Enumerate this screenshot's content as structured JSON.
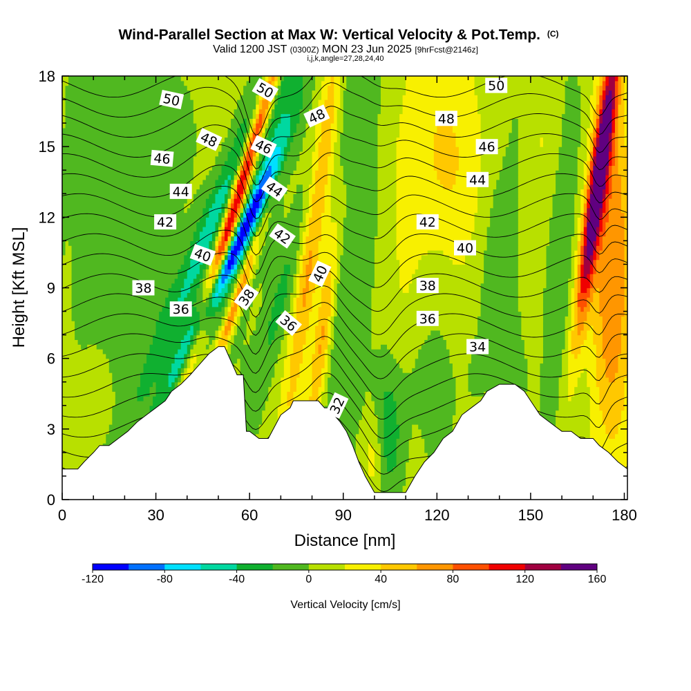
{
  "chart_data": {
    "type": "heatmap",
    "title": "Wind-Parallel Section at Max W: Vertical Velocity & Pot.Temp.",
    "title_mark": "(C)",
    "subtitle_prefix": "Valid 1200 JST",
    "subtitle_utc": "(0300Z)",
    "subtitle_date": "MON 23 Jun 2025",
    "subtitle_fcst": "[9hrFcst@2146z]",
    "subtitle2": "i,j,k,angle=27,28,24,40",
    "xlabel": "Distance [nm]",
    "ylabel": "Height [Kft MSL]",
    "xlim": [
      0,
      181
    ],
    "ylim": [
      0,
      18
    ],
    "x_ticks": [
      "0",
      "30",
      "60",
      "90",
      "120",
      "150",
      "180"
    ],
    "x_tick_values": [
      0,
      30,
      60,
      90,
      120,
      150,
      180
    ],
    "y_ticks": [
      "0",
      "3",
      "6",
      "9",
      "12",
      "15",
      "18"
    ],
    "y_tick_values": [
      0,
      3,
      6,
      9,
      12,
      15,
      18
    ],
    "colorbar": {
      "label": "Vertical Velocity [cm/s]",
      "ticks": [
        "-120",
        "-80",
        "-40",
        "0",
        "40",
        "80",
        "120",
        "160"
      ],
      "tick_values": [
        -120,
        -80,
        -40,
        0,
        40,
        80,
        120,
        160
      ],
      "levels": [
        -120,
        -100,
        -80,
        -60,
        -40,
        -20,
        0,
        20,
        40,
        60,
        80,
        100,
        120,
        140,
        160
      ],
      "colors": [
        "#0000ff",
        "#0070ff",
        "#00e0ff",
        "#00d8a0",
        "#10b030",
        "#50b820",
        "#b8e000",
        "#f8f000",
        "#ffc800",
        "#ff9600",
        "#ff5000",
        "#f00000",
        "#a00040",
        "#600080"
      ]
    },
    "terrain": {
      "x": [
        0,
        5,
        7,
        10,
        12,
        15,
        18,
        21,
        24,
        27,
        30,
        33,
        35,
        38,
        41,
        43,
        45,
        47,
        50,
        52,
        53,
        55,
        56,
        58,
        59,
        60,
        63,
        65,
        66,
        70,
        73,
        74,
        77,
        80,
        82,
        84,
        86,
        87,
        89,
        91,
        93,
        95,
        97,
        100,
        104,
        108,
        110,
        113,
        116,
        119,
        122,
        125,
        128,
        131,
        134,
        136,
        140,
        143,
        145,
        148,
        150,
        153,
        156,
        160,
        163,
        166,
        170,
        172,
        175,
        178,
        181
      ],
      "y": [
        1.3,
        1.3,
        1.6,
        2.0,
        2.3,
        2.3,
        2.6,
        2.9,
        3.3,
        3.6,
        3.9,
        4.2,
        4.6,
        4.9,
        5.3,
        5.6,
        5.9,
        6.2,
        6.5,
        6.5,
        6.2,
        5.6,
        5.3,
        5.3,
        2.9,
        2.9,
        2.6,
        2.6,
        2.6,
        3.6,
        3.9,
        4.2,
        4.2,
        4.2,
        4.2,
        3.9,
        3.9,
        3.6,
        3.3,
        2.9,
        2.3,
        1.6,
        1.0,
        0.3,
        0.3,
        0.3,
        0.3,
        1.0,
        1.6,
        2.0,
        2.6,
        2.9,
        3.6,
        3.9,
        4.2,
        4.6,
        4.9,
        4.9,
        4.9,
        4.6,
        4.2,
        3.6,
        3.3,
        2.9,
        2.9,
        2.6,
        2.6,
        2.3,
        2.0,
        1.6,
        1.3
      ]
    },
    "w_features": [
      {
        "x": 51,
        "y": 9.5,
        "sx": 2.2,
        "sy": 3.2,
        "amp": -115,
        "tilt": 3.5
      },
      {
        "x": 49,
        "y": 12.0,
        "sx": 3.5,
        "sy": 4.5,
        "amp": -55,
        "tilt": 3.0
      },
      {
        "x": 56.5,
        "y": 13.0,
        "sx": 1.8,
        "sy": 5.0,
        "amp": 140,
        "tilt": 2.2
      },
      {
        "x": 56,
        "y": 8.5,
        "sx": 1.5,
        "sy": 2.5,
        "amp": 90,
        "tilt": 2.5
      },
      {
        "x": 66,
        "y": 14.0,
        "sx": 3.5,
        "sy": 5.0,
        "amp": -48,
        "tilt": 2.0
      },
      {
        "x": 70,
        "y": 8.5,
        "sx": 3.0,
        "sy": 4.0,
        "amp": -30,
        "tilt": 2.0
      },
      {
        "x": 80,
        "y": 11.0,
        "sx": 2.5,
        "sy": 7.0,
        "amp": 60,
        "tilt": 1.0
      },
      {
        "x": 84,
        "y": 7.5,
        "sx": 2.0,
        "sy": 4.0,
        "amp": 60,
        "tilt": 1.0
      },
      {
        "x": 90,
        "y": 12.0,
        "sx": 2.5,
        "sy": 8.0,
        "amp": -25,
        "tilt": 0.5
      },
      {
        "x": 97,
        "y": 12.0,
        "sx": 2.5,
        "sy": 7.0,
        "amp": -22,
        "tilt": 0.5
      },
      {
        "x": 104,
        "y": 3.0,
        "sx": 3.5,
        "sy": 2.0,
        "amp": -45,
        "tilt": 0.0
      },
      {
        "x": 100,
        "y": 2.0,
        "sx": 2.5,
        "sy": 1.5,
        "amp": 35,
        "tilt": 0.0
      },
      {
        "x": 125,
        "y": 14.5,
        "sx": 12.0,
        "sy": 3.5,
        "amp": 38,
        "tilt": 0.0
      },
      {
        "x": 140,
        "y": 12.0,
        "sx": 6.0,
        "sy": 5.0,
        "amp": -25,
        "tilt": 0.0
      },
      {
        "x": 111,
        "y": 13.0,
        "sx": 2.5,
        "sy": 5.0,
        "amp": 15,
        "tilt": 0.5
      },
      {
        "x": 20,
        "y": 10.0,
        "sx": 12.0,
        "sy": 8.0,
        "amp": -22,
        "tilt": 0.0
      },
      {
        "x": 12,
        "y": 4.5,
        "sx": 9.0,
        "sy": 2.5,
        "amp": 12,
        "tilt": 0.0
      },
      {
        "x": 171.5,
        "y": 13.5,
        "sx": 2.0,
        "sy": 4.5,
        "amp": 145,
        "tilt": 1.0
      },
      {
        "x": 176,
        "y": 10.0,
        "sx": 5.0,
        "sy": 6.0,
        "amp": 75,
        "tilt": 0.0
      },
      {
        "x": 160,
        "y": 10.0,
        "sx": 3.0,
        "sy": 6.0,
        "amp": -20,
        "tilt": 0.5
      },
      {
        "x": 152,
        "y": 14.0,
        "sx": 3.0,
        "sy": 4.0,
        "amp": 15,
        "tilt": 0.5
      },
      {
        "x": 120,
        "y": 5.0,
        "sx": 4.0,
        "sy": 2.5,
        "amp": -15,
        "tilt": 0.0
      }
    ],
    "theta_contours": {
      "levels": [
        31,
        32,
        33,
        34,
        35,
        36,
        37,
        38,
        39,
        40,
        41,
        42,
        43,
        44,
        45,
        46,
        47,
        48,
        49,
        50,
        51
      ],
      "labels": [
        {
          "text": "50",
          "x": 35,
          "y": 17.0,
          "angle": 12
        },
        {
          "text": "48",
          "x": 47,
          "y": 15.3,
          "angle": 25
        },
        {
          "text": "46",
          "x": 32,
          "y": 14.5,
          "angle": 5
        },
        {
          "text": "44",
          "x": 38,
          "y": 13.1,
          "angle": 0
        },
        {
          "text": "42",
          "x": 33,
          "y": 11.8,
          "angle": 0
        },
        {
          "text": "40",
          "x": 45,
          "y": 10.4,
          "angle": 20
        },
        {
          "text": "38",
          "x": 26,
          "y": 9.0,
          "angle": 0
        },
        {
          "text": "36",
          "x": 38,
          "y": 8.1,
          "angle": 0
        },
        {
          "text": "38",
          "x": 59,
          "y": 8.6,
          "angle": -55
        },
        {
          "text": "50",
          "x": 65,
          "y": 17.4,
          "angle": 30
        },
        {
          "text": "46",
          "x": 64.5,
          "y": 15.0,
          "angle": 25
        },
        {
          "text": "44",
          "x": 68,
          "y": 13.2,
          "angle": 35
        },
        {
          "text": "42",
          "x": 70.5,
          "y": 11.2,
          "angle": 35
        },
        {
          "text": "36",
          "x": 72.5,
          "y": 7.5,
          "angle": 40
        },
        {
          "text": "48",
          "x": 81.5,
          "y": 16.3,
          "angle": -25
        },
        {
          "text": "40",
          "x": 82.5,
          "y": 9.6,
          "angle": -65
        },
        {
          "text": "32",
          "x": 88,
          "y": 4.0,
          "angle": -65
        },
        {
          "text": "50",
          "x": 139,
          "y": 17.6,
          "angle": 0
        },
        {
          "text": "48",
          "x": 123,
          "y": 16.2,
          "angle": 0
        },
        {
          "text": "46",
          "x": 136,
          "y": 15.0,
          "angle": 0
        },
        {
          "text": "44",
          "x": 133,
          "y": 13.6,
          "angle": 0
        },
        {
          "text": "42",
          "x": 117,
          "y": 11.8,
          "angle": 0
        },
        {
          "text": "40",
          "x": 129,
          "y": 10.7,
          "angle": 0
        },
        {
          "text": "38",
          "x": 117,
          "y": 9.1,
          "angle": 0
        },
        {
          "text": "36",
          "x": 117,
          "y": 7.7,
          "angle": 0
        },
        {
          "text": "34",
          "x": 133,
          "y": 6.5,
          "angle": 0
        }
      ]
    }
  }
}
